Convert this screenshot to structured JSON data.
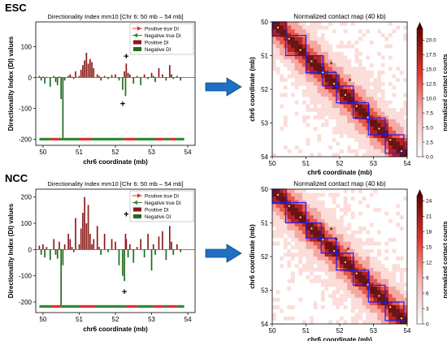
{
  "arrow_color": "#1f6fc2",
  "panels": [
    {
      "row_label": "ESC",
      "di": {
        "type": "bar",
        "title": "Directionality Index mm10 [Chr 6: 50 mb – 54 mb]",
        "xlabel": "chr6 coordinate (mb)",
        "ylabel": "Directionality Index (DI) values",
        "xlim": [
          49.8,
          54.2
        ],
        "ylim": [
          -220,
          180
        ],
        "xticks": [
          50,
          51,
          52,
          53,
          54
        ],
        "yticks": [
          -200,
          -100,
          0,
          100
        ],
        "legend_position": "top-right",
        "legend": [
          "Positive true DI",
          "Negative true DI",
          "Positive DI",
          "Negative DI"
        ],
        "colors": {
          "positive": "#8b1a1a",
          "negative": "#1f6b1f",
          "true_positive": "#e03030",
          "true_negative": "#2e8b2e"
        },
        "x": [
          49.9,
          49.95,
          50.0,
          50.05,
          50.1,
          50.2,
          50.3,
          50.35,
          50.4,
          50.45,
          50.5,
          50.55,
          50.6,
          50.7,
          50.75,
          50.8,
          50.85,
          50.9,
          51.0,
          51.05,
          51.1,
          51.15,
          51.2,
          51.25,
          51.3,
          51.35,
          51.4,
          51.5,
          51.55,
          51.6,
          51.7,
          51.8,
          51.9,
          52.0,
          52.1,
          52.2,
          52.25,
          52.28,
          52.3,
          52.35,
          52.4,
          52.5,
          52.6,
          52.7,
          52.8,
          52.9,
          53.0,
          53.05,
          53.1,
          53.2,
          53.3,
          53.4,
          53.5,
          53.55,
          53.6,
          53.7,
          53.8
        ],
        "values": [
          5,
          -10,
          3,
          -20,
          2,
          -30,
          5,
          -15,
          -25,
          3,
          -70,
          -200,
          -10,
          5,
          10,
          3,
          -5,
          20,
          5,
          25,
          40,
          55,
          80,
          45,
          60,
          50,
          30,
          10,
          5,
          -10,
          5,
          -5,
          8,
          10,
          -10,
          -40,
          20,
          -60,
          45,
          15,
          10,
          -20,
          5,
          -25,
          10,
          -5,
          15,
          5,
          -15,
          30,
          10,
          -10,
          40,
          10,
          -5,
          5,
          -10
        ],
        "annotations": [
          {
            "text": "+",
            "x": 52.3,
            "y": 70
          },
          {
            "text": "+",
            "x": 52.2,
            "y": -85
          }
        ],
        "true_positive_segments": [
          [
            50.2,
            50.45
          ],
          [
            51.0,
            51.35
          ],
          [
            52.25,
            52.55
          ],
          [
            53.1,
            53.35
          ],
          [
            53.5,
            53.65
          ]
        ],
        "true_negative_segments": [
          [
            49.9,
            50.2
          ],
          [
            50.45,
            51.0
          ],
          [
            51.35,
            52.25
          ],
          [
            52.55,
            53.1
          ],
          [
            53.35,
            53.5
          ],
          [
            53.65,
            53.9
          ]
        ]
      },
      "hic": {
        "type": "heatmap",
        "title": "Normalized contact map (40 kb)",
        "xlabel": "chr6 coordinate (mb)",
        "ylabel": "chr6 coordinate (mb)",
        "xlim": [
          50,
          54
        ],
        "ylim": [
          50,
          54
        ],
        "ticks": [
          50,
          51,
          52,
          53,
          54
        ],
        "colorbar_label": "normalized contact counts",
        "colorbar_ticks": [
          0.0,
          2.5,
          5.0,
          7.5,
          10.0,
          12.5,
          15.0,
          17.5,
          20.0
        ],
        "colorbar_max": 22,
        "tads": [
          [
            50.0,
            50.4
          ],
          [
            50.4,
            51.0
          ],
          [
            51.0,
            51.5
          ],
          [
            51.5,
            51.9
          ],
          [
            51.9,
            52.4
          ],
          [
            52.4,
            52.85
          ],
          [
            52.85,
            53.35
          ],
          [
            53.35,
            53.9
          ]
        ],
        "tad_color": "#1a1aff",
        "stars": [
          {
            "text": "*",
            "x": 51.75,
            "y": 51.25
          },
          {
            "text": "*",
            "x": 52.3,
            "y": 51.75
          }
        ]
      }
    },
    {
      "row_label": "NCC",
      "di": {
        "type": "bar",
        "title": "Directionality Index mm10 [Chr 6: 50 mb – 54 mb]",
        "xlabel": "chr6 coordinate (mb)",
        "ylabel": "Directionality Index (DI) values",
        "xlim": [
          49.8,
          54.2
        ],
        "ylim": [
          -240,
          230
        ],
        "xticks": [
          50,
          51,
          52,
          53,
          54
        ],
        "yticks": [
          -200,
          -100,
          0,
          100,
          200
        ],
        "legend_position": "top-right",
        "legend": [
          "Positive true DI",
          "Negative true DI",
          "Positive DI",
          "Negative DI"
        ],
        "colors": {
          "positive": "#8b1a1a",
          "negative": "#1f6b1f",
          "true_positive": "#e03030",
          "true_negative": "#2e8b2e"
        },
        "x": [
          49.9,
          49.95,
          50.0,
          50.05,
          50.1,
          50.2,
          50.3,
          50.35,
          50.4,
          50.45,
          50.5,
          50.55,
          50.6,
          50.7,
          50.75,
          50.8,
          50.85,
          50.9,
          51.0,
          51.05,
          51.1,
          51.15,
          51.2,
          51.25,
          51.3,
          51.35,
          51.4,
          51.5,
          51.55,
          51.6,
          51.7,
          51.8,
          51.9,
          52.0,
          52.1,
          52.2,
          52.25,
          52.28,
          52.3,
          52.35,
          52.4,
          52.5,
          52.6,
          52.7,
          52.8,
          52.9,
          53.0,
          53.05,
          53.1,
          53.2,
          53.3,
          53.4,
          53.5,
          53.55,
          53.6,
          53.7,
          53.8
        ],
        "values": [
          15,
          -20,
          20,
          -30,
          10,
          -40,
          40,
          -20,
          -35,
          30,
          -215,
          -60,
          20,
          60,
          40,
          10,
          -10,
          120,
          20,
          80,
          140,
          200,
          100,
          170,
          60,
          20,
          40,
          90,
          10,
          -20,
          60,
          -10,
          40,
          30,
          -60,
          -100,
          -120,
          60,
          40,
          -30,
          20,
          -50,
          10,
          40,
          -30,
          60,
          -80,
          20,
          -20,
          50,
          70,
          -40,
          90,
          30,
          -20,
          20,
          -10
        ],
        "annotations": [
          {
            "text": "+",
            "x": 52.3,
            "y": 135
          },
          {
            "text": "+",
            "x": 52.25,
            "y": -160
          }
        ],
        "true_positive_segments": [
          [
            50.25,
            50.5
          ],
          [
            51.0,
            51.45
          ],
          [
            52.3,
            52.6
          ],
          [
            53.05,
            53.35
          ],
          [
            53.45,
            53.7
          ]
        ],
        "true_negative_segments": [
          [
            49.9,
            50.25
          ],
          [
            50.5,
            51.0
          ],
          [
            51.45,
            52.3
          ],
          [
            52.6,
            53.05
          ],
          [
            53.35,
            53.45
          ],
          [
            53.7,
            53.9
          ]
        ]
      },
      "hic": {
        "type": "heatmap",
        "title": "Normalized contact map (40 kb)",
        "xlabel": "chr6 coordinate (mb)",
        "ylabel": "chr6 coordinate (mb)",
        "xlim": [
          50,
          54
        ],
        "ylim": [
          50,
          54
        ],
        "ticks": [
          50,
          51,
          52,
          53,
          54
        ],
        "colorbar_label": "normalized contact counts",
        "colorbar_ticks": [
          0,
          3,
          6,
          9,
          12,
          15,
          18,
          21,
          24
        ],
        "colorbar_max": 25,
        "tads": [
          [
            50.0,
            50.4
          ],
          [
            50.4,
            51.0
          ],
          [
            51.0,
            51.45
          ],
          [
            51.45,
            51.9
          ],
          [
            51.9,
            52.4
          ],
          [
            52.4,
            52.85
          ],
          [
            52.85,
            53.35
          ],
          [
            53.35,
            53.9
          ]
        ],
        "tad_color": "#1a1aff",
        "stars": [
          {
            "text": "*",
            "x": 51.75,
            "y": 51.2
          },
          {
            "text": "*",
            "x": 51.9,
            "y": 51.5
          },
          {
            "text": "*",
            "x": 52.25,
            "y": 51.8
          }
        ]
      }
    }
  ]
}
